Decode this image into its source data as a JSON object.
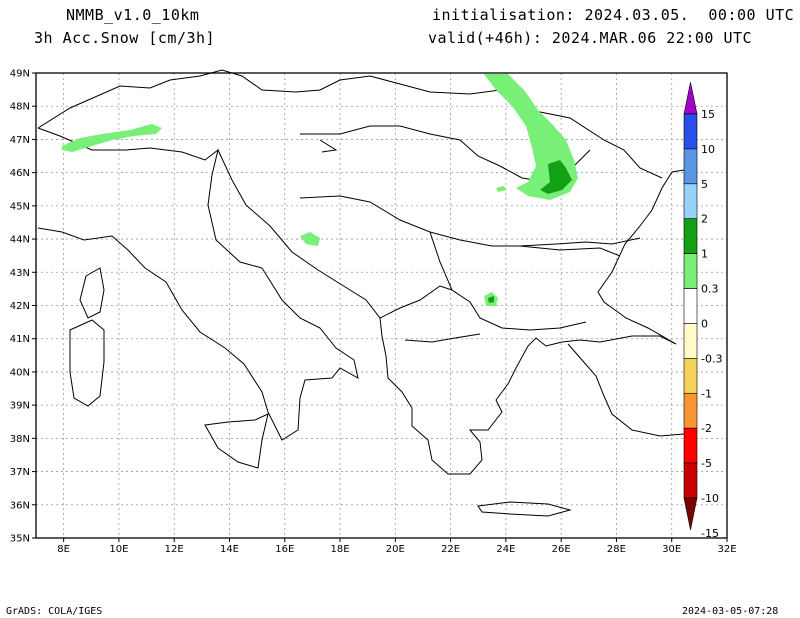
{
  "header": {
    "model": "NMMB_v1.0_10km",
    "variable": "3h Acc.Snow [cm/3h]",
    "init": "initialisation: 2024.03.05.  00:00 UTC",
    "valid": "valid(+46h): 2024.MAR.06 22:00 UTC"
  },
  "footer": {
    "software": "GrADS: COLA/IGES",
    "timestamp": "2024-03-05-07:28"
  },
  "axes": {
    "lon_labels": [
      "8E",
      "10E",
      "12E",
      "14E",
      "16E",
      "18E",
      "20E",
      "22E",
      "24E",
      "26E",
      "28E",
      "30E",
      "32E"
    ],
    "lat_labels": [
      "49N",
      "48N",
      "47N",
      "46N",
      "45N",
      "44N",
      "43N",
      "42N",
      "41N",
      "40N",
      "39N",
      "38N",
      "37N",
      "36N",
      "35N"
    ],
    "lon_range": [
      7,
      32
    ],
    "lat_range": [
      35,
      49
    ],
    "grid": true
  },
  "colorbar": {
    "labels": [
      "15",
      "10",
      "5",
      "2",
      "1",
      "0.3",
      "0",
      "-0.3",
      "-1",
      "-2",
      "-5",
      "-10",
      "-15"
    ],
    "colors": [
      "#a000c8",
      "#2a4ee8",
      "#5a96e6",
      "#96d2fa",
      "#14a014",
      "#78f078",
      "#ffffff",
      "#fffac8",
      "#f5d25a",
      "#fa9632",
      "#ff0000",
      "#c80000",
      "#780000"
    ]
  },
  "snow_areas": [
    {
      "name": "alps",
      "level": "0.3-1",
      "color": "#78f078"
    },
    {
      "name": "carpathians",
      "level": "0.3-1",
      "color": "#78f078"
    },
    {
      "name": "carpathians-core",
      "level": "1-2",
      "color": "#14a014"
    },
    {
      "name": "dinaric",
      "level": "0.3-1",
      "color": "#78f078"
    },
    {
      "name": "rila",
      "level": "0.3-1",
      "color": "#78f078"
    },
    {
      "name": "rila-core",
      "level": "1-2",
      "color": "#14a014"
    }
  ]
}
